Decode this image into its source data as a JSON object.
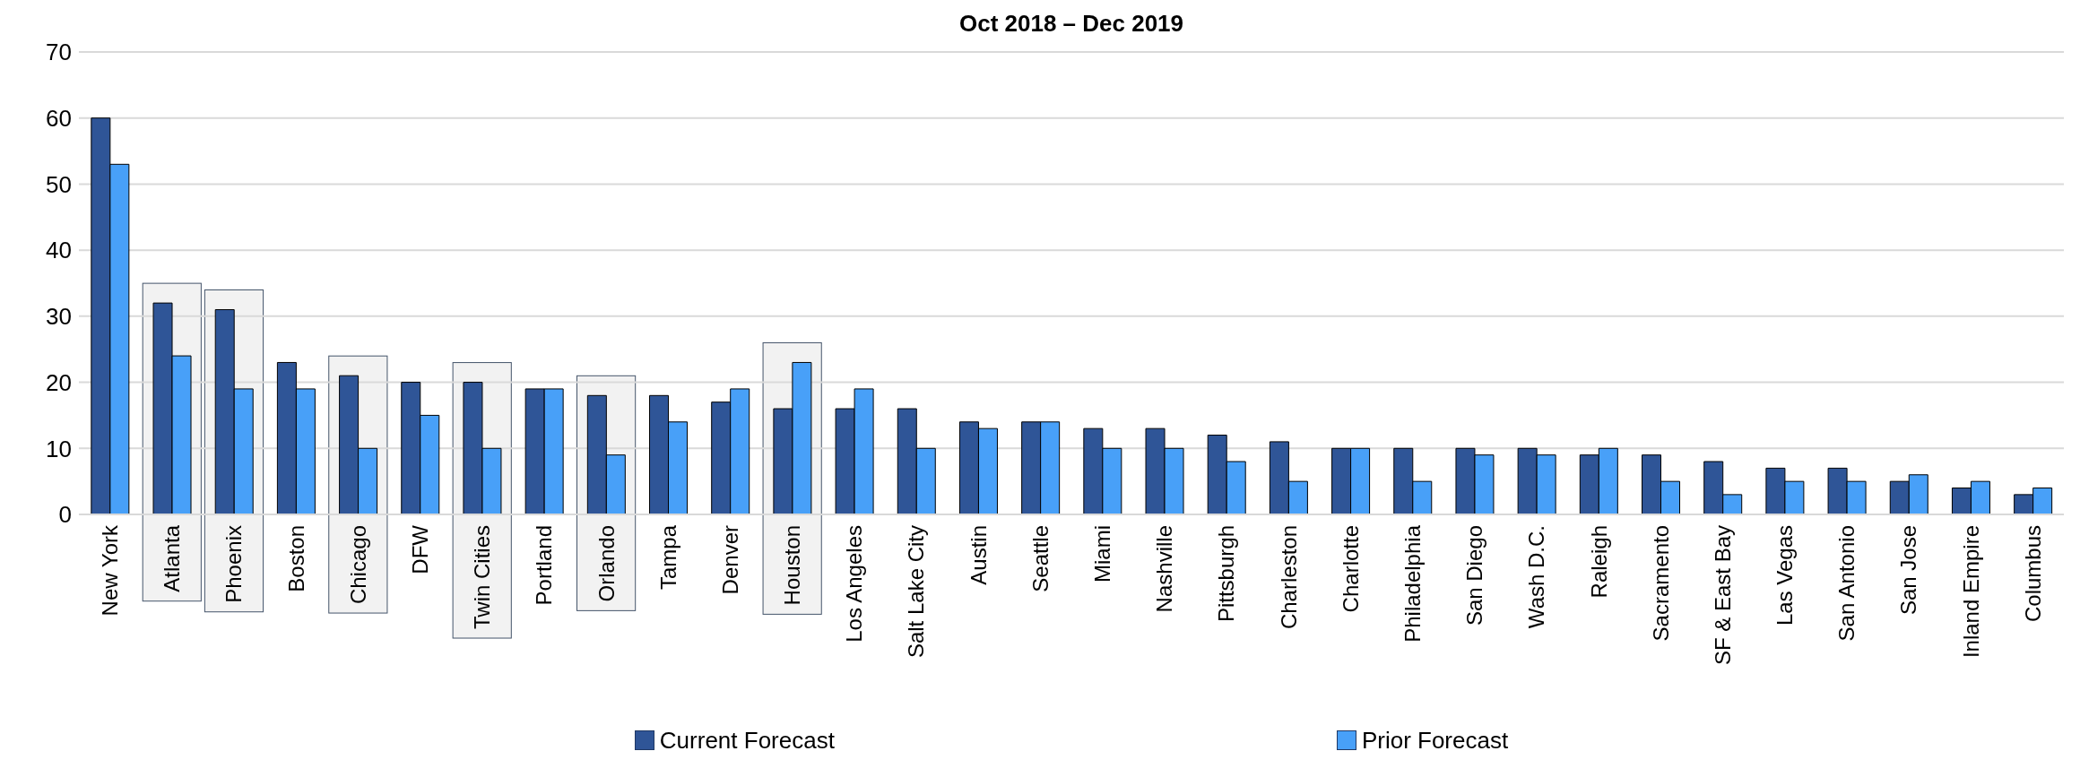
{
  "chart_data": {
    "type": "bar",
    "title": "Oct 2018 – Dec 2019",
    "categories": [
      "New York",
      "Atlanta",
      "Phoenix",
      "Boston",
      "Chicago",
      "DFW",
      "Twin Cities",
      "Portland",
      "Orlando",
      "Tampa",
      "Denver",
      "Houston",
      "Los Angeles",
      "Salt Lake City",
      "Austin",
      "Seattle",
      "Miami",
      "Nashville",
      "Pittsburgh",
      "Charleston",
      "Charlotte",
      "Philadelphia",
      "San Diego",
      "Wash D.C.",
      "Raleigh",
      "Sacramento",
      "SF & East Bay",
      "Las Vegas",
      "San Antonio",
      "San Jose",
      "Inland Empire",
      "Columbus"
    ],
    "series": [
      {
        "name": "Current Forecast",
        "color": "#2f5597",
        "values": [
          60,
          32,
          31,
          23,
          21,
          20,
          20,
          19,
          18,
          18,
          17,
          16,
          16,
          16,
          14,
          14,
          13,
          13,
          12,
          11,
          10,
          10,
          10,
          10,
          9,
          9,
          8,
          7,
          7,
          5,
          4,
          3
        ]
      },
      {
        "name": "Prior Forecast",
        "color": "#48a0f8",
        "values": [
          53,
          24,
          19,
          19,
          10,
          15,
          10,
          19,
          9,
          14,
          19,
          23,
          19,
          10,
          13,
          14,
          10,
          10,
          8,
          5,
          10,
          5,
          9,
          9,
          10,
          5,
          3,
          5,
          5,
          6,
          5,
          4
        ]
      }
    ],
    "ylim": [
      0,
      70
    ],
    "yticks": [
      0,
      10,
      20,
      30,
      40,
      50,
      60,
      70
    ],
    "grid": "y",
    "legend": "bottom",
    "bands": [
      {
        "axis": "x",
        "from": "Atlanta",
        "to": "Atlanta",
        "color": "#f2f2f2"
      },
      {
        "axis": "x",
        "from": "Phoenix",
        "to": "Phoenix",
        "color": "#f2f2f2"
      },
      {
        "axis": "x",
        "from": "Chicago",
        "to": "Chicago",
        "color": "#f2f2f2"
      },
      {
        "axis": "x",
        "from": "Twin Cities",
        "to": "Twin Cities",
        "color": "#f2f2f2"
      },
      {
        "axis": "x",
        "from": "Orlando",
        "to": "Orlando",
        "color": "#f2f2f2"
      },
      {
        "axis": "x",
        "from": "Houston",
        "to": "Houston",
        "color": "#f2f2f2"
      }
    ]
  }
}
